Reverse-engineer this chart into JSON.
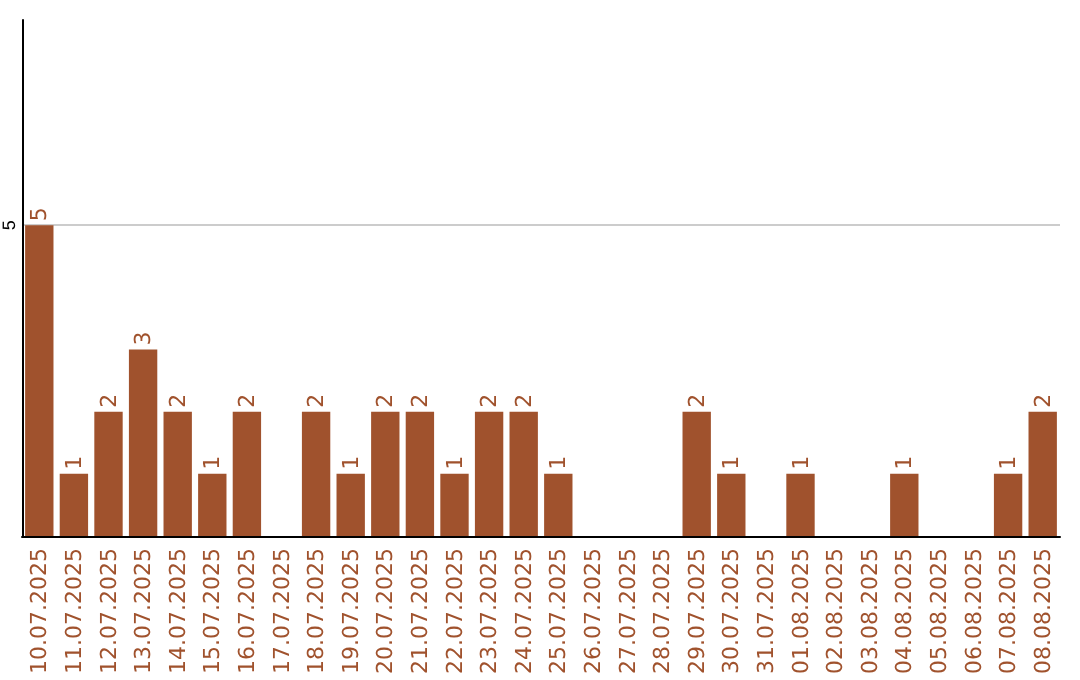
{
  "chart_data": {
    "type": "bar",
    "categories": [
      "10.07.2025",
      "11.07.2025",
      "12.07.2025",
      "13.07.2025",
      "14.07.2025",
      "15.07.2025",
      "16.07.2025",
      "17.07.2025",
      "18.07.2025",
      "19.07.2025",
      "20.07.2025",
      "21.07.2025",
      "22.07.2025",
      "23.07.2025",
      "24.07.2025",
      "25.07.2025",
      "26.07.2025",
      "27.07.2025",
      "28.07.2025",
      "29.07.2025",
      "30.07.2025",
      "31.07.2025",
      "01.08.2025",
      "02.08.2025",
      "03.08.2025",
      "04.08.2025",
      "05.08.2025",
      "06.08.2025",
      "07.08.2025",
      "08.08.2025"
    ],
    "values": [
      5,
      1,
      2,
      3,
      2,
      1,
      2,
      0,
      2,
      1,
      2,
      2,
      1,
      2,
      2,
      1,
      0,
      0,
      0,
      2,
      1,
      0,
      1,
      0,
      0,
      1,
      0,
      0,
      1,
      2
    ],
    "value_labels": [
      "5",
      "1",
      "2",
      "3",
      "2",
      "1",
      "2",
      null,
      "2",
      "1",
      "2",
      "2",
      "1",
      "2",
      "2",
      "1",
      null,
      null,
      null,
      "2",
      "1",
      null,
      "1",
      null,
      null,
      "1",
      null,
      null,
      "1",
      "2"
    ],
    "color": "#a0522d",
    "ylim": [
      0,
      8.3
    ],
    "yticks": [
      5
    ],
    "grid": "y"
  }
}
